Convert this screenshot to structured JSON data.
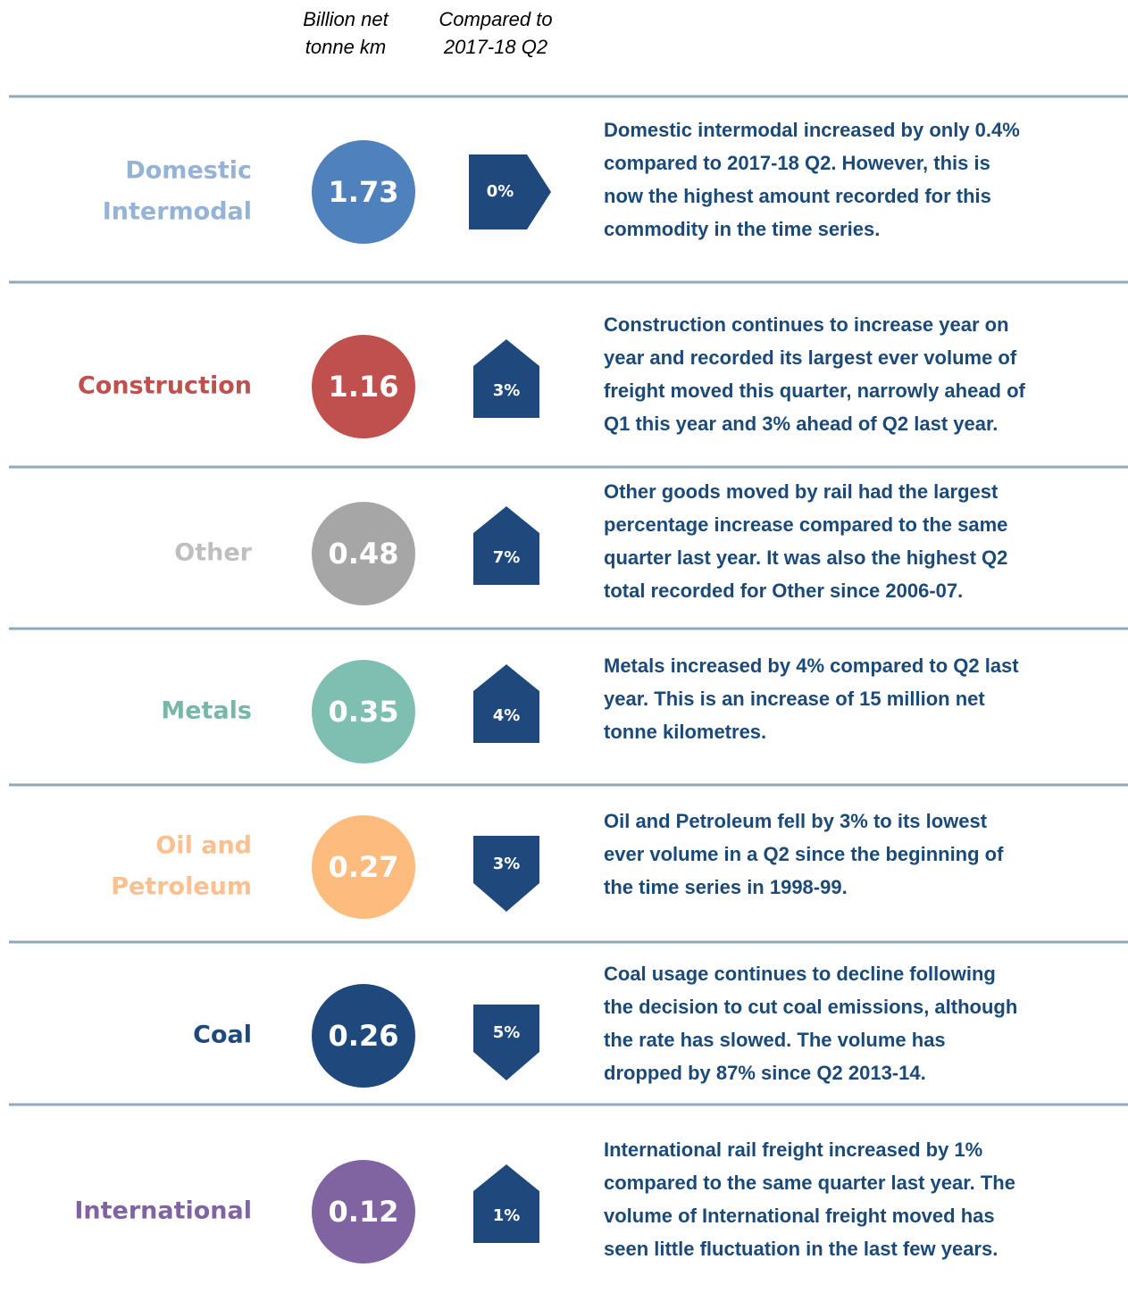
{
  "header": {
    "value_heading": [
      "Billion net",
      "tonne km"
    ],
    "change_heading": [
      "Compared to",
      "2017-18 Q2"
    ]
  },
  "rows": [
    {
      "label": [
        "Domestic",
        "Intermodal"
      ],
      "value": "1.73",
      "change": "0%",
      "arrow": "right",
      "label_color": "#95b3d7",
      "circle_color": "#4f81bd",
      "text": [
        "Domestic intermodal increased by only 0.4%",
        "compared to 2017-18 Q2. However, this is",
        "now the highest amount recorded for this",
        "commodity in the time series."
      ]
    },
    {
      "label": [
        "Construction"
      ],
      "value": "1.16",
      "change": "3%",
      "arrow": "up",
      "label_color": "#c0504d",
      "circle_color": "#c0504d",
      "text": [
        "Construction continues to increase year on",
        "year and recorded its largest ever volume of",
        "freight moved this quarter, narrowly ahead of",
        "Q1 this year and 3% ahead of Q2 last year."
      ]
    },
    {
      "label": [
        "Other"
      ],
      "value": "0.48",
      "change": "7%",
      "arrow": "up",
      "label_color": "#bfbfbf",
      "circle_color": "#a6a6a6",
      "text": [
        "Other goods moved by rail had the largest",
        "percentage increase compared to the same",
        "quarter last year. It was also the highest Q2",
        "total recorded for Other since 2006-07."
      ]
    },
    {
      "label": [
        "Metals"
      ],
      "value": "0.35",
      "change": "4%",
      "arrow": "up",
      "label_color": "#76b7a9",
      "circle_color": "#7fbfb2",
      "text": [
        "Metals increased by 4% compared to Q2 last",
        "year. This is an increase of 15 million net",
        "tonne kilometres."
      ]
    },
    {
      "label": [
        "Oil and",
        "Petroleum"
      ],
      "value": "0.27",
      "change": "3%",
      "arrow": "down",
      "label_color": "#fac08f",
      "circle_color": "#fdbb7e",
      "text": [
        "Oil and Petroleum fell by 3% to its lowest",
        "ever volume in a Q2 since the beginning of",
        "the time series in 1998-99."
      ]
    },
    {
      "label": [
        "Coal"
      ],
      "value": "0.26",
      "change": "5%",
      "arrow": "down",
      "label_color": "#1f497d",
      "circle_color": "#1f497d",
      "text": [
        "Coal usage continues to decline following",
        "the decision to cut coal emissions, although",
        "the rate has slowed. The volume has",
        "dropped by 87% since Q2 2013-14."
      ]
    },
    {
      "label": [
        "International"
      ],
      "value": "0.12",
      "change": "1%",
      "arrow": "up",
      "label_color": "#8064a2",
      "circle_color": "#8064a2",
      "text": [
        "International rail freight increased by 1%",
        "compared to the same quarter last year. The",
        "volume of International freight moved has",
        "seen little fluctuation in the last few years."
      ]
    }
  ]
}
